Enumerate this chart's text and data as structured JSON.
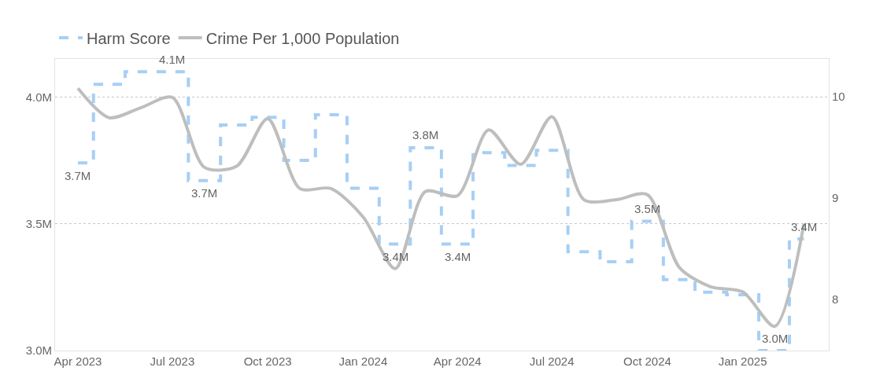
{
  "chart_data": {
    "type": "line",
    "x": [
      "2023-04",
      "2023-05",
      "2023-06",
      "2023-07",
      "2023-08",
      "2023-09",
      "2023-10",
      "2023-11",
      "2023-12",
      "2024-01",
      "2024-02",
      "2024-03",
      "2024-04",
      "2024-05",
      "2024-06",
      "2024-07",
      "2024-08",
      "2024-09",
      "2024-10",
      "2024-11",
      "2024-12",
      "2025-01",
      "2025-02",
      "2025-03"
    ],
    "series": [
      {
        "name": "Harm Score",
        "type": "step",
        "color": "#a6cff5",
        "line_style": "dashed",
        "values": [
          3.74,
          4.05,
          4.1,
          4.1,
          3.67,
          3.89,
          3.92,
          3.75,
          3.93,
          3.64,
          3.42,
          3.8,
          3.42,
          3.78,
          3.73,
          3.79,
          3.39,
          3.35,
          3.51,
          3.28,
          3.23,
          3.22,
          3.0,
          3.44
        ],
        "value_labels": [
          "3.7M",
          null,
          null,
          "4.1M",
          "3.7M",
          null,
          null,
          null,
          null,
          null,
          "3.4M",
          "3.8M",
          "3.4M",
          null,
          null,
          null,
          null,
          null,
          "3.5M",
          null,
          null,
          null,
          "3.0M",
          "3.4M"
        ]
      },
      {
        "name": "Crime Per 1,000 Population",
        "axis": "y2",
        "color": "#bdbebe",
        "line_style": "solid",
        "values": [
          10.08,
          9.79,
          9.89,
          9.99,
          9.3,
          9.31,
          9.78,
          9.09,
          9.09,
          8.81,
          8.3,
          9.06,
          9.02,
          9.67,
          9.33,
          9.8,
          8.98,
          8.98,
          9.03,
          8.31,
          8.12,
          8.07,
          7.73,
          8.74
        ]
      }
    ],
    "xlim": [
      "2023-03-10",
      "2025-03-25"
    ],
    "ylim": [
      3.0,
      4.15
    ],
    "yticks": [
      {
        "value": 3.0,
        "label": "3.0M"
      },
      {
        "value": 3.5,
        "label": "3.5M"
      },
      {
        "value": 4.0,
        "label": "4.0M"
      }
    ],
    "y2lim": [
      7.49,
      10.37
    ],
    "y2ticks": [
      8,
      9,
      10
    ],
    "xticks": [
      {
        "value": "2023-04",
        "label": "Apr 2023"
      },
      {
        "value": "2023-07",
        "label": "Jul 2023"
      },
      {
        "value": "2023-10",
        "label": "Oct 2023"
      },
      {
        "value": "2024-01",
        "label": "Jan 2024"
      },
      {
        "value": "2024-04",
        "label": "Apr 2024"
      },
      {
        "value": "2024-07",
        "label": "Jul 2024"
      },
      {
        "value": "2024-10",
        "label": "Oct 2024"
      },
      {
        "value": "2025-01",
        "label": "Jan 2025"
      }
    ],
    "grid": "y",
    "legend": "top left",
    "marker": "none"
  }
}
